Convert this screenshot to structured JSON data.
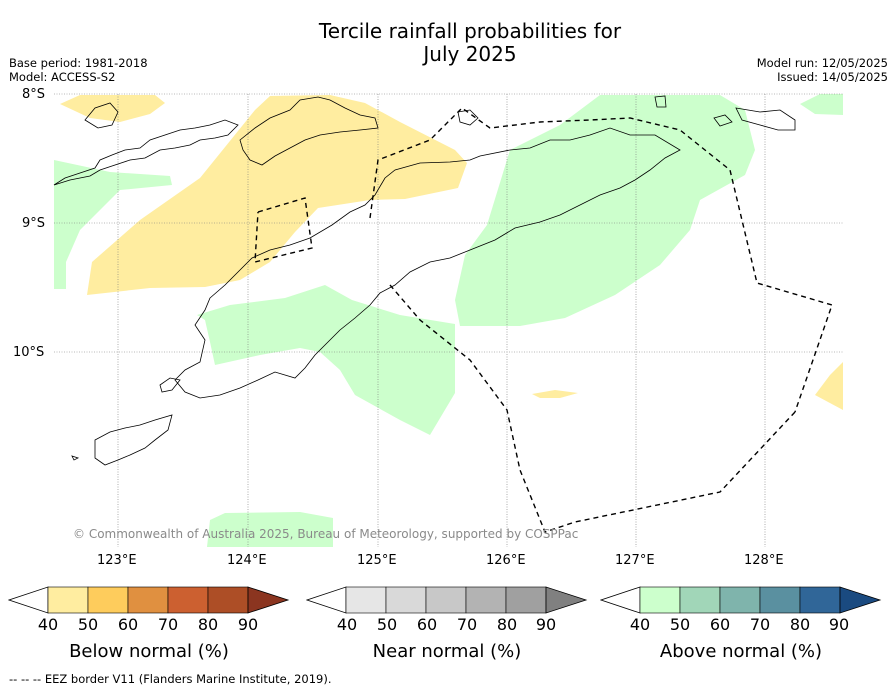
{
  "title_line1": "Tercile rainfall probabilities for",
  "title_line2": "July 2025",
  "base_period": "Base period: 1981-2018",
  "model": "Model: ACCESS-S2",
  "model_run": "Model run: 12/05/2025",
  "issued": "Issued: 14/05/2025",
  "lat_labels": [
    "8°S",
    "9°S",
    "10°S"
  ],
  "lon_labels": [
    "123°E",
    "124°E",
    "125°E",
    "126°E",
    "127°E",
    "128°E"
  ],
  "copyright": "© Commonwealth of Australia 2025, Bureau of Meteorology, supported by COSPPac",
  "colorbars": [
    {
      "title": "Below normal (%)",
      "ticks": [
        "40",
        "50",
        "60",
        "70",
        "80",
        "90"
      ],
      "colors": [
        "#ffeda0",
        "#fecc5c",
        "#e09040",
        "#cc6030",
        "#ad4e26",
        "#8b3520"
      ],
      "under": "#ffffff"
    },
    {
      "title": "Near normal (%)",
      "ticks": [
        "40",
        "50",
        "60",
        "70",
        "80",
        "90"
      ],
      "colors": [
        "#e6e6e6",
        "#d9d9d9",
        "#c8c8c8",
        "#b3b3b3",
        "#a0a0a0",
        "#808080"
      ],
      "under": "#ffffff"
    },
    {
      "title": "Above normal (%)",
      "ticks": [
        "40",
        "50",
        "60",
        "70",
        "80",
        "90"
      ],
      "colors": [
        "#ccffcc",
        "#a1d6b8",
        "#7fb4ac",
        "#5a90a0",
        "#306698",
        "#1a4a80"
      ],
      "under": "#ffffff"
    }
  ],
  "footer": "--  --  -- EEZ border V11 (Flanders Marine Institute, 2019).",
  "colors": {
    "below_fill": "#ffeda0",
    "above_fill": "#ccffcc"
  }
}
